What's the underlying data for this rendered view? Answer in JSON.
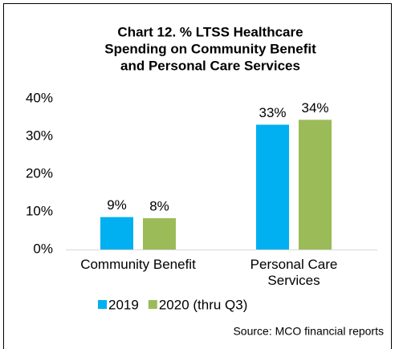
{
  "chart_data": {
    "type": "bar",
    "title": [
      "Chart 12. % LTSS Healthcare",
      "Spending on Community Benefit",
      "and Personal Care Services"
    ],
    "categories": [
      "Community Benefit",
      "Personal Care Services"
    ],
    "series": [
      {
        "name": "2019",
        "color": "#00b0f0",
        "values": [
          8.6,
          33.1
        ],
        "value_labels": [
          "9%",
          "33%"
        ]
      },
      {
        "name": "2020 (thru Q3)",
        "color": "#9bbb59",
        "values": [
          8.3,
          34.4
        ],
        "value_labels": [
          "8%",
          "34%"
        ]
      }
    ],
    "ylim": [
      0,
      40
    ],
    "yticks": [
      {
        "value": 0,
        "label": "0%"
      },
      {
        "value": 10,
        "label": "10%"
      },
      {
        "value": 20,
        "label": "20%"
      },
      {
        "value": 30,
        "label": "30%"
      },
      {
        "value": 40,
        "label": "40%"
      }
    ],
    "grid": false,
    "legend": "bottom",
    "source": "Source: MCO financial reports"
  }
}
